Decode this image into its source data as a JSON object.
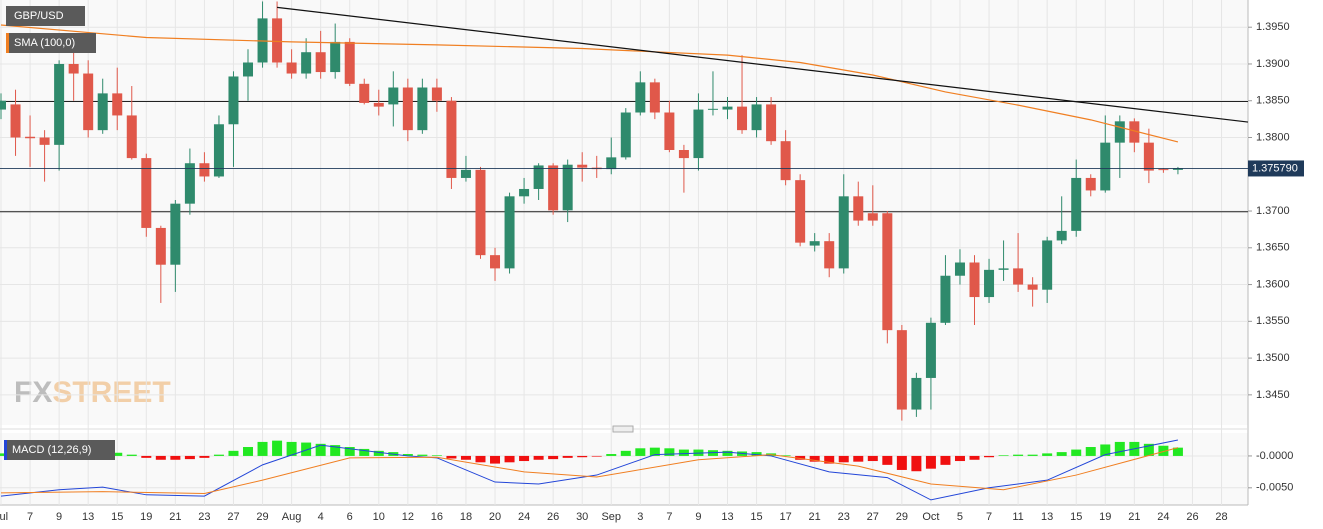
{
  "chart_data": [
    {
      "type": "candlestick",
      "name": "GBP/USD",
      "categories": [
        "Jul",
        null,
        "7",
        null,
        "9",
        null,
        "13",
        null,
        "15",
        null,
        "19",
        null,
        "21",
        null,
        "23",
        null,
        "27",
        null,
        "29",
        null,
        "Aug",
        null,
        "4",
        null,
        "6",
        null,
        "10",
        null,
        "12",
        null,
        "16",
        null,
        "18",
        null,
        "20",
        null,
        "24",
        null,
        "26",
        null,
        "30",
        null,
        "Sep",
        null,
        "3",
        null,
        "7",
        null,
        "9",
        null,
        "13",
        null,
        "15",
        null,
        "17",
        null,
        "21",
        null,
        "23",
        null,
        "27",
        null,
        "29",
        null,
        "Oct",
        null,
        "5",
        null,
        "7",
        null,
        "11",
        null,
        "13",
        null,
        "15",
        null,
        "19",
        null,
        "21",
        null,
        "24",
        null,
        "26",
        null,
        "28"
      ],
      "open": [
        1.3838,
        1.3845,
        1.3801,
        1.38,
        1.379,
        1.39,
        1.3887,
        1.381,
        1.386,
        1.383,
        1.3772,
        1.3677,
        1.3627,
        1.371,
        1.3765,
        1.3747,
        1.3818,
        1.3883,
        1.3902,
        1.3962,
        1.3902,
        1.3887,
        1.3916,
        1.3889,
        1.393,
        1.3873,
        1.3847,
        1.3845,
        1.3868,
        1.381,
        1.3868,
        1.385,
        1.3745,
        1.3756,
        1.364,
        1.3622,
        1.372,
        1.373,
        1.3762,
        1.3701,
        1.3763,
        1.3759,
        1.3757,
        1.3773,
        1.3834,
        1.3875,
        1.3834,
        1.3783,
        1.3772,
        1.3838,
        1.3838,
        1.3842,
        1.381,
        1.3845,
        1.3795,
        1.3742,
        1.3653,
        1.3659,
        1.3622,
        1.372,
        1.3697,
        1.3697,
        1.3538,
        1.343,
        1.3473,
        1.3548,
        1.3612,
        1.363,
        1.3583,
        1.362,
        1.3622,
        1.36,
        1.3593,
        1.366,
        1.3673,
        1.3745,
        1.3728,
        1.3793,
        1.3822,
        1.3793,
        1.3757,
        1.3756,
        null,
        null,
        null
      ],
      "high": [
        1.386,
        1.3865,
        1.383,
        1.381,
        1.3905,
        1.3915,
        1.3905,
        1.388,
        1.3895,
        1.387,
        1.3778,
        1.368,
        1.3715,
        1.3785,
        1.378,
        1.383,
        1.389,
        1.392,
        1.3985,
        1.3985,
        1.392,
        1.3935,
        1.3945,
        1.3955,
        1.3935,
        1.388,
        1.3865,
        1.389,
        1.388,
        1.388,
        1.388,
        1.3855,
        1.3775,
        1.376,
        1.365,
        1.3725,
        1.3745,
        1.3765,
        1.3765,
        1.377,
        1.378,
        1.3775,
        1.38,
        1.384,
        1.389,
        1.388,
        1.385,
        1.379,
        1.386,
        1.389,
        1.3855,
        1.3912,
        1.3855,
        1.3855,
        1.381,
        1.375,
        1.367,
        1.367,
        1.375,
        1.374,
        1.3735,
        1.37,
        1.3545,
        1.348,
        1.3555,
        1.364,
        1.3648,
        1.364,
        1.3635,
        1.366,
        1.367,
        1.361,
        1.3665,
        1.372,
        1.377,
        1.375,
        1.383,
        1.383,
        1.3826,
        1.3812,
        1.3758,
        1.376,
        null,
        null,
        null
      ],
      "low": [
        1.3825,
        1.3775,
        1.376,
        1.374,
        1.3755,
        1.385,
        1.38,
        1.3805,
        1.381,
        1.377,
        1.3665,
        1.3575,
        1.359,
        1.3695,
        1.374,
        1.3745,
        1.376,
        1.385,
        1.3895,
        1.3895,
        1.388,
        1.388,
        1.388,
        1.388,
        1.387,
        1.3845,
        1.383,
        1.3815,
        1.3795,
        1.3805,
        1.3835,
        1.373,
        1.374,
        1.3635,
        1.3605,
        1.3615,
        1.371,
        1.3715,
        1.3695,
        1.3685,
        1.374,
        1.3745,
        1.375,
        1.377,
        1.383,
        1.3825,
        1.378,
        1.3725,
        1.3755,
        1.383,
        1.3825,
        1.3805,
        1.38,
        1.379,
        1.3735,
        1.3652,
        1.3645,
        1.361,
        1.3615,
        1.368,
        1.368,
        1.352,
        1.3415,
        1.342,
        1.343,
        1.3545,
        1.36,
        1.3545,
        1.3575,
        1.3605,
        1.359,
        1.357,
        1.3575,
        1.3655,
        1.3665,
        1.372,
        1.3725,
        1.3745,
        1.378,
        1.3738,
        1.3752,
        1.375,
        null,
        null,
        null
      ],
      "close": [
        1.385,
        1.38,
        1.3799,
        1.379,
        1.39,
        1.3887,
        1.381,
        1.386,
        1.383,
        1.3772,
        1.3677,
        1.3627,
        1.371,
        1.3765,
        1.3747,
        1.3818,
        1.3883,
        1.3902,
        1.3962,
        1.3902,
        1.3887,
        1.3916,
        1.3889,
        1.393,
        1.3873,
        1.3847,
        1.3842,
        1.3868,
        1.381,
        1.3868,
        1.385,
        1.3745,
        1.3756,
        1.364,
        1.3622,
        1.372,
        1.373,
        1.3762,
        1.3701,
        1.3763,
        1.3759,
        1.3757,
        1.3773,
        1.3834,
        1.3875,
        1.3834,
        1.3783,
        1.3772,
        1.3838,
        1.3839,
        1.3842,
        1.381,
        1.3845,
        1.3795,
        1.3742,
        1.3657,
        1.3659,
        1.3622,
        1.372,
        1.3687,
        1.3687,
        1.3538,
        1.343,
        1.3473,
        1.3548,
        1.3612,
        1.363,
        1.3583,
        1.362,
        1.3622,
        1.36,
        1.3593,
        1.366,
        1.3673,
        1.3745,
        1.3728,
        1.3793,
        1.3822,
        1.3793,
        1.3755,
        1.3756,
        1.3758,
        null,
        null,
        null
      ],
      "up_color": "#2f8a6c",
      "down_color": "#e0584a",
      "ylim": [
        1.3409,
        1.3987
      ],
      "yticks": [
        {
          "value": 1.345,
          "label": "1.3450"
        },
        {
          "value": 1.35,
          "label": "1.3500"
        },
        {
          "value": 1.355,
          "label": "1.3550"
        },
        {
          "value": 1.36,
          "label": "1.3600"
        },
        {
          "value": 1.365,
          "label": "1.3650"
        },
        {
          "value": 1.37,
          "label": "1.3700"
        },
        {
          "value": 1.38,
          "label": "1.3800"
        },
        {
          "value": 1.385,
          "label": "1.3850"
        },
        {
          "value": 1.39,
          "label": "1.3900"
        },
        {
          "value": 1.395,
          "label": "1.3950"
        }
      ],
      "series": [
        {
          "name": "SMA (100,0)",
          "color": "#f07f22",
          "x": [
            0,
            10,
            20,
            30,
            40,
            50,
            55,
            60,
            65,
            70,
            75,
            81
          ],
          "values": [
            1.3953,
            1.3936,
            1.393,
            1.3926,
            1.3921,
            1.3912,
            1.3902,
            1.3885,
            1.3862,
            1.3844,
            1.3824,
            1.3794
          ]
        }
      ],
      "trendline": {
        "color": "#111111",
        "x": [
          19,
          86
        ],
        "values": [
          1.3977,
          1.3821
        ]
      },
      "hlines": [
        1.3849,
        1.3699
      ],
      "last_price": 1.37579,
      "last_price_label": "1.375790",
      "last_price_color": "#1f3a5a",
      "grid": true
    },
    {
      "type": "macd",
      "name": "MACD (12,26,9)",
      "name_color": "#2346d8",
      "histogram": [
        0.0004,
        0.0003,
        0.0003,
        0.0002,
        0.0004,
        0.0005,
        0.0005,
        0.0006,
        0.0005,
        0.0002,
        -0.0003,
        -0.0006,
        -0.0006,
        -0.0005,
        -0.0003,
        0.0002,
        0.0008,
        0.0014,
        0.0022,
        0.0024,
        0.0022,
        0.0021,
        0.0019,
        0.0017,
        0.0014,
        0.0011,
        0.0008,
        0.0006,
        0.0003,
        0.0002,
        0.0001,
        -0.0004,
        -0.0006,
        -0.001,
        -0.0012,
        -0.001,
        -0.0008,
        -0.0006,
        -0.0005,
        -0.0003,
        -0.0002,
        -0.0001,
        0.0003,
        0.0008,
        0.0012,
        0.0013,
        0.0012,
        0.001,
        0.001,
        0.0009,
        0.0008,
        0.0007,
        0.0006,
        0.0004,
        0.0001,
        -0.0006,
        -0.0009,
        -0.0012,
        -0.001,
        -0.0009,
        -0.0008,
        -0.0014,
        -0.0022,
        -0.0024,
        -0.002,
        -0.0014,
        -0.0008,
        -0.0006,
        -0.0002,
        0.0001,
        0.0002,
        0.0002,
        0.0004,
        0.0006,
        0.001,
        0.0014,
        0.0018,
        0.0022,
        0.0022,
        0.0019,
        0.0016,
        0.0013
      ],
      "up_color": "#22e822",
      "down_color": "#f01010",
      "series": [
        {
          "color": "#2346d8",
          "x": [
            0,
            4,
            7,
            10,
            14,
            18,
            22,
            28,
            30,
            34,
            37,
            41,
            45,
            50,
            53,
            57,
            61,
            64,
            68,
            72,
            76,
            81
          ],
          "values": [
            -0.0063,
            -0.0053,
            -0.0049,
            -0.0061,
            -0.0063,
            -0.0014,
            0.0017,
            0.0,
            -0.0003,
            -0.0041,
            -0.0044,
            -0.003,
            0.0002,
            0.0006,
            0.0,
            -0.0025,
            -0.0034,
            -0.0069,
            -0.005,
            -0.0038,
            0.0002,
            0.0025
          ]
        },
        {
          "color": "#f07f22",
          "x": [
            0,
            7,
            14,
            18,
            24,
            30,
            36,
            41,
            48,
            53,
            59,
            64,
            69,
            74,
            81
          ],
          "values": [
            -0.0058,
            -0.0056,
            -0.0059,
            -0.0038,
            -0.0003,
            -0.0002,
            -0.0025,
            -0.0033,
            -0.0006,
            0.0002,
            -0.0016,
            -0.0044,
            -0.0053,
            -0.003,
            0.0013
          ]
        }
      ],
      "ylim": [
        -0.0077,
        0.0036
      ],
      "yticks": [
        {
          "value": 0,
          "label": "-0.0000"
        },
        {
          "value": -0.005,
          "label": "-0.0050"
        }
      ],
      "grid": true
    }
  ],
  "logo": {
    "fx": "FX",
    "street": "STREET"
  }
}
